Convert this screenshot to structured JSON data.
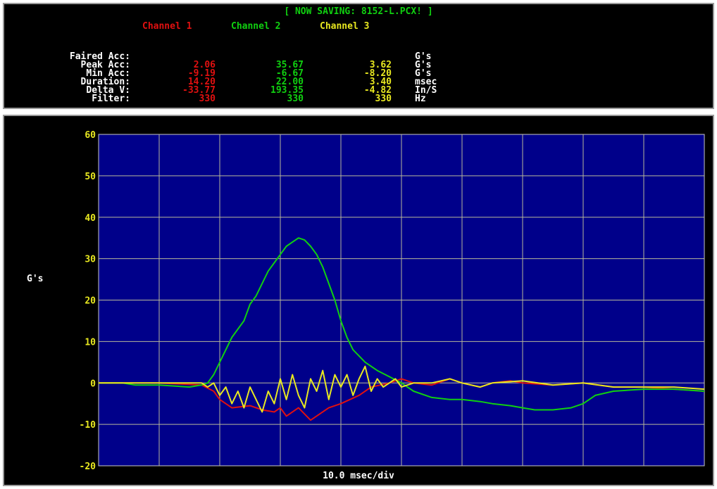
{
  "header": {
    "status": "[ NOW SAVING: 8152-L.PCX! ]",
    "channels": [
      "Channel 1",
      "Channel 2",
      "Channel 3"
    ]
  },
  "stats": {
    "labels": [
      "Faired Acc:",
      "Peak Acc:",
      "Min Acc:",
      "Duration:",
      "Delta V:",
      "Filter:"
    ],
    "ch1": [
      "",
      "2.06",
      "-9.19",
      "14.20",
      "-33.77",
      "330"
    ],
    "ch2": [
      "",
      "35.67",
      "-6.67",
      "22.00",
      "193.35",
      "330"
    ],
    "ch3": [
      "",
      "3.62",
      "-8.20",
      "3.40",
      "-4.82",
      "330"
    ],
    "units": [
      "G's",
      "G's",
      "G's",
      "msec",
      "In/S",
      "Hz"
    ]
  },
  "colors": {
    "ch1": "#e01010",
    "ch2": "#10d010",
    "ch3": "#e8e820",
    "plot_bg": "#00008a",
    "grid": "#b8b89a"
  },
  "chart_data": {
    "type": "line",
    "ylabel": "G's",
    "xlabel": "10.0 msec/div",
    "ylim": [
      -20,
      60
    ],
    "yticks": [
      60,
      50,
      40,
      30,
      20,
      10,
      0,
      -10,
      -20
    ],
    "xlim": [
      0,
      100
    ],
    "grid": true,
    "series": [
      {
        "name": "Channel 1",
        "color": "#e01010",
        "x": [
          0,
          10,
          17,
          19,
          20,
          22,
          25,
          27,
          29,
          30,
          31,
          33,
          35,
          38,
          40,
          43,
          45,
          48,
          50,
          52,
          55,
          58,
          60,
          63,
          65,
          68,
          70,
          75,
          80,
          85,
          90,
          95,
          100
        ],
        "y": [
          0,
          0,
          -0.5,
          -2,
          -4,
          -6,
          -5.5,
          -6.5,
          -7,
          -6,
          -8,
          -6,
          -9,
          -6,
          -5,
          -3,
          -1,
          0,
          1,
          0,
          -0.5,
          1,
          0,
          -1,
          0,
          0.5,
          0,
          -0.5,
          0,
          -1,
          -1,
          -1.5,
          -2
        ]
      },
      {
        "name": "Channel 2",
        "color": "#10d010",
        "x": [
          0,
          4,
          6,
          10,
          15,
          17,
          18,
          19,
          20,
          22,
          24,
          25,
          26,
          27,
          28,
          29,
          30,
          31,
          32,
          33,
          34,
          35,
          36,
          37,
          38,
          39,
          40,
          41,
          42,
          44,
          46,
          48,
          50,
          52,
          55,
          58,
          60,
          63,
          65,
          68,
          70,
          72,
          75,
          78,
          80,
          82,
          85,
          90,
          95,
          100
        ],
        "y": [
          0,
          0,
          -0.5,
          -0.5,
          -1,
          -0.5,
          0,
          2,
          5,
          11,
          15,
          19,
          21,
          24,
          27,
          29,
          31,
          33,
          34,
          35,
          34.5,
          33,
          31,
          28,
          24,
          20,
          15,
          11,
          8,
          5,
          3,
          1.5,
          0,
          -2,
          -3.5,
          -4,
          -4,
          -4.5,
          -5,
          -5.5,
          -6,
          -6.5,
          -6.5,
          -6,
          -5,
          -3,
          -2,
          -1.5,
          -1.5,
          -2
        ]
      },
      {
        "name": "Channel 3",
        "color": "#e8e820",
        "x": [
          0,
          10,
          17,
          18,
          19,
          20,
          21,
          22,
          23,
          24,
          25,
          26,
          27,
          28,
          29,
          30,
          31,
          32,
          33,
          34,
          35,
          36,
          37,
          38,
          39,
          40,
          41,
          42,
          43,
          44,
          45,
          46,
          47,
          48,
          49,
          50,
          52,
          55,
          58,
          60,
          63,
          65,
          70,
          75,
          80,
          85,
          90,
          95,
          100
        ],
        "y": [
          0,
          0,
          0,
          -1,
          0,
          -3,
          -1,
          -5,
          -2,
          -6,
          -1,
          -4,
          -7,
          -2,
          -5,
          1,
          -4,
          2,
          -3,
          -6,
          1,
          -2,
          3,
          -4,
          2,
          -1,
          2,
          -3,
          1,
          4,
          -2,
          1,
          -1,
          0,
          1,
          -1,
          0,
          0,
          1,
          0,
          -1,
          0,
          0.5,
          -0.5,
          0,
          -1,
          -1,
          -1,
          -1.5
        ]
      }
    ]
  }
}
